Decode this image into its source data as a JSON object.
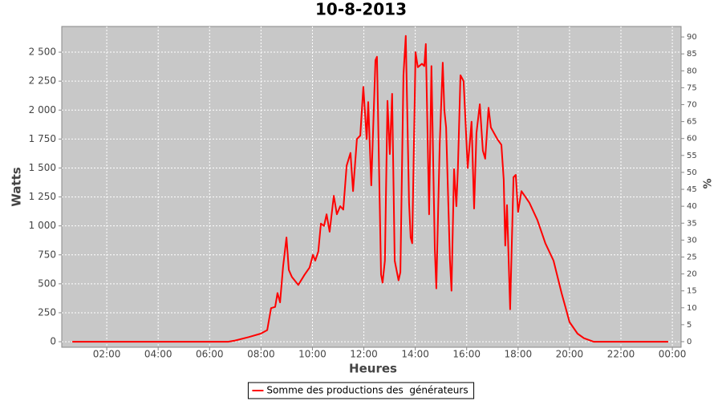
{
  "chart_data": {
    "type": "line",
    "title": "10-8-2013",
    "x_label": "Heures",
    "y_label": "Watts",
    "y2_label": "%",
    "x": [
      0.66,
      6.72,
      6.99,
      7.52,
      7.99,
      8.24,
      8.39,
      8.55,
      8.64,
      8.74,
      8.86,
      8.99,
      9.08,
      9.2,
      9.45,
      9.7,
      9.89,
      10.02,
      10.11,
      10.23,
      10.33,
      10.45,
      10.55,
      10.67,
      10.83,
      10.95,
      11.08,
      11.2,
      11.33,
      11.48,
      11.58,
      11.73,
      11.86,
      11.98,
      12.11,
      12.17,
      12.29,
      12.45,
      12.51,
      12.67,
      12.73,
      12.82,
      12.92,
      13.01,
      13.1,
      13.2,
      13.35,
      13.42,
      13.54,
      13.63,
      13.76,
      13.82,
      13.88,
      14.01,
      14.1,
      14.26,
      14.35,
      14.41,
      14.54,
      14.63,
      14.76,
      14.82,
      14.95,
      15.07,
      15.13,
      15.2,
      15.35,
      15.41,
      15.51,
      15.6,
      15.66,
      15.76,
      15.88,
      16.04,
      16.19,
      16.29,
      16.38,
      16.51,
      16.63,
      16.72,
      16.85,
      16.94,
      17.19,
      17.35,
      17.44,
      17.5,
      17.57,
      17.69,
      17.82,
      17.91,
      18.0,
      18.13,
      18.44,
      18.75,
      19.06,
      19.38,
      19.69,
      19.84,
      20.0,
      20.31,
      20.56,
      20.94,
      23.84
    ],
    "series": [
      {
        "name": "Somme des productions des  générateurs",
        "color": "#ff0000",
        "values": [
          0,
          0,
          10,
          40,
          70,
          100,
          290,
          300,
          420,
          340,
          650,
          900,
          620,
          560,
          490,
          580,
          640,
          750,
          700,
          780,
          1020,
          1000,
          1100,
          950,
          1260,
          1100,
          1170,
          1140,
          1520,
          1630,
          1300,
          1750,
          1780,
          2200,
          1750,
          2070,
          1350,
          2430,
          2460,
          580,
          510,
          700,
          2080,
          1620,
          2140,
          700,
          530,
          600,
          2300,
          2640,
          1200,
          900,
          850,
          2500,
          2370,
          2400,
          2380,
          2570,
          1100,
          2380,
          800,
          460,
          1700,
          2410,
          2000,
          1850,
          700,
          440,
          1490,
          1170,
          1500,
          2300,
          2250,
          1500,
          1900,
          1150,
          1800,
          2050,
          1650,
          1580,
          2020,
          1850,
          1750,
          1700,
          1400,
          830,
          1180,
          280,
          1420,
          1440,
          1120,
          1300,
          1200,
          1050,
          850,
          700,
          420,
          300,
          170,
          70,
          30,
          0,
          0
        ]
      }
    ],
    "xlim": [
      0.25,
      24.34
    ],
    "xticks": [
      {
        "value": 2,
        "label": "02:00"
      },
      {
        "value": 4,
        "label": "04:00"
      },
      {
        "value": 6,
        "label": "06:00"
      },
      {
        "value": 8,
        "label": "08:00"
      },
      {
        "value": 10,
        "label": "10:00"
      },
      {
        "value": 12,
        "label": "12:00"
      },
      {
        "value": 14,
        "label": "14:00"
      },
      {
        "value": 16,
        "label": "16:00"
      },
      {
        "value": 18,
        "label": "18:00"
      },
      {
        "value": 20,
        "label": "20:00"
      },
      {
        "value": 22,
        "label": "22:00"
      },
      {
        "value": 24,
        "label": "00:00"
      }
    ],
    "ylim": [
      -48,
      2722
    ],
    "yticks": [
      0,
      250,
      500,
      750,
      {
        "value": 1000,
        "label": "1 000"
      },
      {
        "value": 1250,
        "label": "1 250"
      },
      {
        "value": 1500,
        "label": "1 500"
      },
      {
        "value": 1750,
        "label": "1 750"
      },
      {
        "value": 2000,
        "label": "2 000"
      },
      {
        "value": 2250,
        "label": "2 250"
      },
      {
        "value": 2500,
        "label": "2 500"
      }
    ],
    "y2lim": [
      -1.66,
      93.1
    ],
    "y2ticks": [
      0,
      5,
      10,
      15,
      20,
      25,
      30,
      35,
      40,
      45,
      50,
      55,
      60,
      65,
      70,
      75,
      80,
      85,
      90
    ],
    "grid": true,
    "legend": "bottom"
  }
}
